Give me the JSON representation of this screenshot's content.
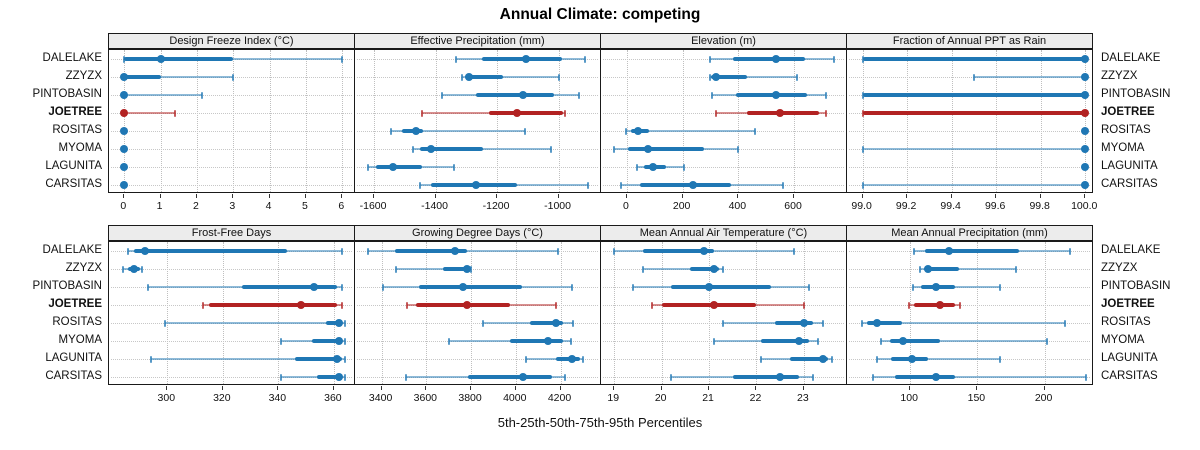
{
  "chart_data": {
    "type": "scatter",
    "variant": "trellis-percentile-range-dotplot",
    "title": "Annual Climate: competing",
    "caption": "5th-25th-50th-75th-95th Percentiles",
    "percentile_labels": [
      "5th",
      "25th",
      "50th",
      "75th",
      "95th"
    ],
    "legend_position": "none",
    "grid": "dotted",
    "sites": [
      "DALELAKE",
      "ZZYZX",
      "PINTOBASIN",
      "JOETREE",
      "ROSITAS",
      "MYOMA",
      "LAGUNITA",
      "CARSITAS"
    ],
    "highlight_site": "JOETREE",
    "colors": {
      "series": "#1f77b4",
      "highlight": "#b22222",
      "strip_bg": "#ececec",
      "grid": "#bfbfbf",
      "border": "#1a1a1a"
    },
    "panels": [
      {
        "title": "Design Freeze Index (°C)",
        "grid_row": 0,
        "grid_col": 0,
        "xlim": [
          -0.42,
          6.35
        ],
        "ticks": [
          0,
          1,
          2,
          3,
          4,
          5,
          6
        ],
        "tick_labels": [
          "0",
          "1",
          "2",
          "3",
          "4",
          "5",
          "6"
        ],
        "values": [
          [
            0,
            0,
            1.0,
            3.0,
            6.0
          ],
          [
            0,
            0,
            0,
            1.0,
            3.0
          ],
          [
            0,
            0,
            0,
            0.05,
            2.15
          ],
          [
            0,
            0,
            0,
            0.05,
            1.4
          ],
          [
            0,
            0,
            0,
            0,
            0
          ],
          [
            0,
            0,
            0,
            0,
            0
          ],
          [
            0,
            0,
            0,
            0,
            0
          ],
          [
            0,
            0,
            0,
            0,
            0
          ]
        ]
      },
      {
        "title": "Effective Precipitation (mm)",
        "grid_row": 0,
        "grid_col": 1,
        "xlim": [
          -1662,
          -862
        ],
        "ticks": [
          -1600,
          -1400,
          -1200,
          -1000
        ],
        "tick_labels": [
          "-1600",
          "-1400",
          "-1200",
          "-1000"
        ],
        "values": [
          [
            -1335,
            -1250,
            -1105,
            -990,
            -915
          ],
          [
            -1315,
            -1305,
            -1290,
            -1180,
            -1000
          ],
          [
            -1380,
            -1270,
            -1115,
            -1015,
            -935
          ],
          [
            -1445,
            -1225,
            -1135,
            -985,
            -978
          ],
          [
            -1545,
            -1510,
            -1465,
            -1440,
            -1110
          ],
          [
            -1475,
            -1450,
            -1415,
            -1245,
            -1025
          ],
          [
            -1620,
            -1595,
            -1540,
            -1445,
            -1340
          ],
          [
            -1450,
            -1415,
            -1270,
            -1135,
            -905
          ]
        ]
      },
      {
        "title": "Elevation (m)",
        "grid_row": 0,
        "grid_col": 2,
        "xlim": [
          -93,
          790
        ],
        "ticks": [
          0,
          200,
          400,
          600
        ],
        "tick_labels": [
          "0",
          "200",
          "400",
          "600"
        ],
        "values": [
          [
            300,
            380,
            535,
            640,
            745
          ],
          [
            298,
            302,
            320,
            430,
            610
          ],
          [
            305,
            390,
            535,
            645,
            715
          ],
          [
            320,
            430,
            550,
            690,
            715
          ],
          [
            -5,
            15,
            40,
            80,
            460
          ],
          [
            -45,
            5,
            75,
            275,
            400
          ],
          [
            35,
            63,
            93,
            140,
            205
          ],
          [
            -20,
            48,
            237,
            375,
            560
          ]
        ]
      },
      {
        "title": "Fraction of Annual PPT as Rain",
        "grid_row": 0,
        "grid_col": 3,
        "xlim": [
          98.93,
          100.035
        ],
        "ticks": [
          99.0,
          99.2,
          99.4,
          99.6,
          99.8,
          100.0
        ],
        "tick_labels": [
          "99.0",
          "99.2",
          "99.4",
          "99.6",
          "99.8",
          "100.0"
        ],
        "values": [
          [
            99.0,
            99.0,
            100,
            100,
            100
          ],
          [
            99.5,
            100,
            100,
            100,
            100
          ],
          [
            99.0,
            99.0,
            100,
            100,
            100
          ],
          [
            99.0,
            99.0,
            100,
            100,
            100
          ],
          [
            100,
            100,
            100,
            100,
            100
          ],
          [
            99.0,
            100,
            100,
            100,
            100
          ],
          [
            100,
            100,
            100,
            100,
            100
          ],
          [
            99.0,
            100,
            100,
            100,
            100
          ]
        ]
      },
      {
        "title": "Frost-Free Days",
        "grid_row": 1,
        "grid_col": 0,
        "xlim": [
          279,
          367.6
        ],
        "ticks": [
          300,
          320,
          340,
          360
        ],
        "tick_labels": [
          "300",
          "320",
          "340",
          "360"
        ],
        "values": [
          [
            286,
            288,
            292,
            343,
            363
          ],
          [
            284,
            286,
            288,
            290,
            291
          ],
          [
            293,
            327,
            353,
            361,
            363
          ],
          [
            313,
            315,
            348,
            361,
            363
          ],
          [
            299,
            357,
            362,
            363,
            364
          ],
          [
            341,
            352,
            362,
            363,
            364
          ],
          [
            294,
            346,
            361,
            363,
            364
          ],
          [
            341,
            354,
            362,
            363,
            364
          ]
        ]
      },
      {
        "title": "Growing Degree Days (°C)",
        "grid_row": 1,
        "grid_col": 1,
        "xlim": [
          3281,
          4381
        ],
        "ticks": [
          3400,
          3600,
          3800,
          4000,
          4200
        ],
        "tick_labels": [
          "3400",
          "3600",
          "3800",
          "4000",
          "4200"
        ],
        "values": [
          [
            3340,
            3460,
            3730,
            3780,
            4190
          ],
          [
            3465,
            3675,
            3780,
            3793,
            3800
          ],
          [
            3405,
            3565,
            3765,
            4030,
            4250
          ],
          [
            3515,
            3555,
            3780,
            3975,
            4180
          ],
          [
            3855,
            4065,
            4180,
            4210,
            4255
          ],
          [
            3700,
            3975,
            4145,
            4210,
            4245
          ],
          [
            4045,
            4180,
            4250,
            4285,
            4300
          ],
          [
            3510,
            3785,
            4030,
            4160,
            4220
          ]
        ]
      },
      {
        "title": "Mean Annual Air Temperature (°C)",
        "grid_row": 1,
        "grid_col": 2,
        "xlim": [
          18.72,
          23.91
        ],
        "ticks": [
          19,
          20,
          21,
          22,
          23
        ],
        "tick_labels": [
          "19",
          "20",
          "21",
          "22",
          "23"
        ],
        "values": [
          [
            19.0,
            19.6,
            20.9,
            21.1,
            22.8
          ],
          [
            19.6,
            20.6,
            21.1,
            21.2,
            21.3
          ],
          [
            19.4,
            20.2,
            21.0,
            22.3,
            23.1
          ],
          [
            19.8,
            20.0,
            21.1,
            22.0,
            23.0
          ],
          [
            21.3,
            22.4,
            23.0,
            23.2,
            23.4
          ],
          [
            21.1,
            22.1,
            22.9,
            23.1,
            23.3
          ],
          [
            22.1,
            22.7,
            23.4,
            23.5,
            23.6
          ],
          [
            20.2,
            21.5,
            22.5,
            22.9,
            23.2
          ]
        ]
      },
      {
        "title": "Mean Annual Precipitation (mm)",
        "grid_row": 1,
        "grid_col": 3,
        "xlim": [
          53,
          236
        ],
        "ticks": [
          100,
          150,
          200
        ],
        "tick_labels": [
          "100",
          "150",
          "200"
        ],
        "values": [
          [
            103,
            111,
            129,
            181,
            219
          ],
          [
            107,
            110,
            113,
            136,
            179
          ],
          [
            102,
            108,
            119,
            133,
            167
          ],
          [
            99,
            103,
            122,
            133,
            137
          ],
          [
            64,
            68,
            75,
            94,
            215
          ],
          [
            78,
            85,
            95,
            122,
            202
          ],
          [
            75,
            86,
            101,
            113,
            167
          ],
          [
            72,
            89,
            119,
            133,
            231
          ]
        ]
      }
    ]
  }
}
